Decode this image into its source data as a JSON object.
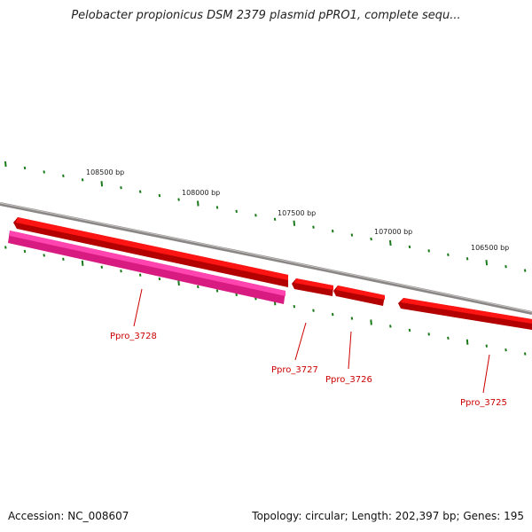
{
  "title": "Pelobacter propionicus DSM 2379 plasmid pPRO1, complete sequ...",
  "footer": {
    "accession": "Accession: NC_008607",
    "summary": "Topology: circular; Length: 202,397 bp; Genes: 195"
  },
  "colors": {
    "backbone": "#8a8686",
    "tick": "#1a7a1a",
    "gene_forward": "#ee0000",
    "gene_reverse": "#ff3aa8",
    "label": "#cc0000"
  },
  "position_labels": [
    "108500 bp",
    "108000 bp",
    "107500 bp",
    "107000 bp",
    "106500 bp"
  ],
  "genes": [
    {
      "label": "Ppro_3728",
      "strand": "reverse"
    },
    {
      "label": "Ppro_3727",
      "strand": "forward"
    },
    {
      "label": "Ppro_3726",
      "strand": "forward"
    },
    {
      "label": "Ppro_3725",
      "strand": "forward"
    }
  ],
  "unlabeled_gene": {
    "strand": "forward"
  }
}
